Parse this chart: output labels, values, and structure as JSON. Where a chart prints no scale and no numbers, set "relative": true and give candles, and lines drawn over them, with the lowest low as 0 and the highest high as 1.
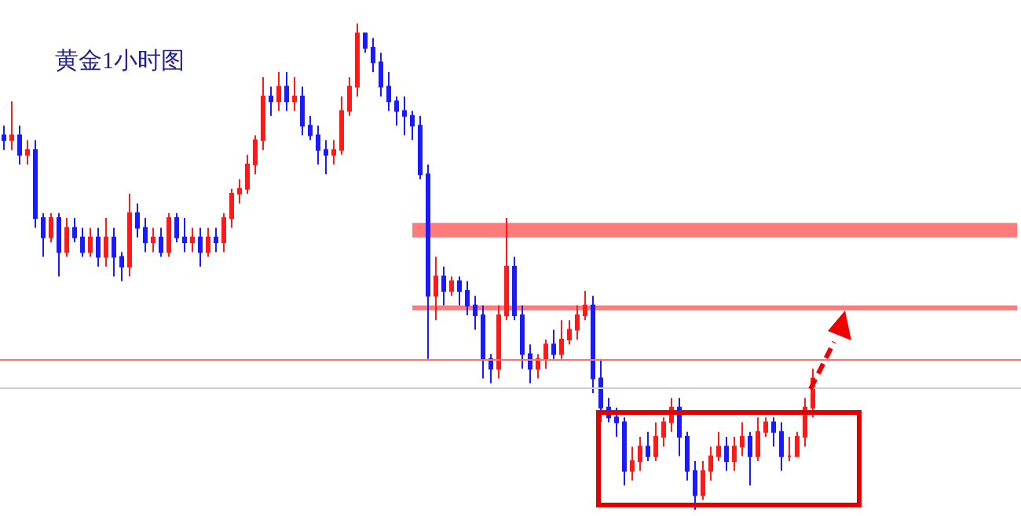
{
  "chart_data": {
    "type": "candlestick",
    "title": "黄金1小时图",
    "relative": true,
    "tick_labels": false,
    "categories": [
      null,
      null,
      null,
      null,
      null,
      null,
      null,
      null,
      null,
      null,
      null,
      null,
      null,
      null,
      null,
      null,
      null,
      null,
      null,
      null,
      null,
      null,
      null,
      null,
      null,
      null,
      null,
      null,
      null,
      null,
      null,
      null,
      null,
      null,
      null,
      null,
      null,
      null,
      null,
      null,
      null,
      null,
      null,
      null,
      null,
      null,
      null,
      null,
      null,
      null,
      null,
      null,
      null,
      null,
      null,
      null,
      null,
      null,
      null,
      null,
      null,
      null,
      null,
      null,
      null,
      null,
      null,
      null,
      null,
      null,
      null,
      null,
      null,
      null,
      null,
      null,
      null,
      null,
      null,
      null,
      null,
      null,
      null,
      null,
      null,
      null,
      null,
      null,
      null,
      null,
      null,
      null,
      null,
      null,
      null,
      null,
      null,
      null,
      null,
      null,
      null,
      null,
      null,
      null
    ],
    "ohlc": [
      [
        0.77,
        0.79,
        0.74,
        0.76
      ],
      [
        0.76,
        0.84,
        0.74,
        0.77
      ],
      [
        0.77,
        0.79,
        0.71,
        0.73
      ],
      [
        0.73,
        0.76,
        0.71,
        0.74
      ],
      [
        0.74,
        0.76,
        0.58,
        0.6
      ],
      [
        0.6,
        0.61,
        0.52,
        0.56
      ],
      [
        0.56,
        0.61,
        0.55,
        0.6
      ],
      [
        0.6,
        0.61,
        0.48,
        0.53
      ],
      [
        0.53,
        0.6,
        0.52,
        0.58
      ],
      [
        0.58,
        0.6,
        0.55,
        0.56
      ],
      [
        0.56,
        0.58,
        0.52,
        0.53
      ],
      [
        0.53,
        0.58,
        0.52,
        0.56
      ],
      [
        0.56,
        0.58,
        0.5,
        0.52
      ],
      [
        0.52,
        0.6,
        0.5,
        0.56
      ],
      [
        0.56,
        0.58,
        0.48,
        0.52
      ],
      [
        0.52,
        0.53,
        0.47,
        0.5
      ],
      [
        0.5,
        0.65,
        0.48,
        0.61
      ],
      [
        0.61,
        0.63,
        0.56,
        0.58
      ],
      [
        0.58,
        0.6,
        0.53,
        0.55
      ],
      [
        0.55,
        0.58,
        0.53,
        0.56
      ],
      [
        0.56,
        0.58,
        0.52,
        0.53
      ],
      [
        0.53,
        0.61,
        0.52,
        0.6
      ],
      [
        0.6,
        0.61,
        0.55,
        0.56
      ],
      [
        0.56,
        0.6,
        0.53,
        0.55
      ],
      [
        0.55,
        0.58,
        0.53,
        0.56
      ],
      [
        0.56,
        0.58,
        0.5,
        0.53
      ],
      [
        0.53,
        0.58,
        0.52,
        0.56
      ],
      [
        0.56,
        0.58,
        0.53,
        0.55
      ],
      [
        0.55,
        0.61,
        0.53,
        0.6
      ],
      [
        0.6,
        0.66,
        0.58,
        0.65
      ],
      [
        0.65,
        0.68,
        0.63,
        0.66
      ],
      [
        0.66,
        0.73,
        0.65,
        0.71
      ],
      [
        0.71,
        0.77,
        0.69,
        0.76
      ],
      [
        0.76,
        0.89,
        0.74,
        0.85
      ],
      [
        0.85,
        0.87,
        0.81,
        0.84
      ],
      [
        0.84,
        0.9,
        0.82,
        0.87
      ],
      [
        0.87,
        0.9,
        0.82,
        0.84
      ],
      [
        0.84,
        0.89,
        0.82,
        0.85
      ],
      [
        0.85,
        0.87,
        0.77,
        0.79
      ],
      [
        0.79,
        0.81,
        0.76,
        0.77
      ],
      [
        0.77,
        0.79,
        0.71,
        0.74
      ],
      [
        0.74,
        0.76,
        0.69,
        0.73
      ],
      [
        0.73,
        0.76,
        0.71,
        0.74
      ],
      [
        0.74,
        0.85,
        0.73,
        0.82
      ],
      [
        0.82,
        0.89,
        0.81,
        0.87
      ],
      [
        0.87,
        1.0,
        0.85,
        0.98
      ],
      [
        0.98,
        0.98,
        0.94,
        0.95
      ],
      [
        0.95,
        0.97,
        0.9,
        0.92
      ],
      [
        0.92,
        0.94,
        0.85,
        0.87
      ],
      [
        0.87,
        0.9,
        0.82,
        0.84
      ],
      [
        0.84,
        0.85,
        0.79,
        0.82
      ],
      [
        0.82,
        0.85,
        0.77,
        0.81
      ],
      [
        0.81,
        0.82,
        0.76,
        0.79
      ],
      [
        0.79,
        0.81,
        0.68,
        0.69
      ],
      [
        0.69,
        0.71,
        0.31,
        0.44
      ],
      [
        0.44,
        0.52,
        0.39,
        0.48
      ],
      [
        0.48,
        0.5,
        0.42,
        0.45
      ],
      [
        0.45,
        0.48,
        0.44,
        0.47
      ],
      [
        0.47,
        0.48,
        0.42,
        0.45
      ],
      [
        0.45,
        0.47,
        0.4,
        0.42
      ],
      [
        0.42,
        0.44,
        0.37,
        0.4
      ],
      [
        0.4,
        0.42,
        0.27,
        0.31
      ],
      [
        0.31,
        0.32,
        0.26,
        0.29
      ],
      [
        0.29,
        0.42,
        0.27,
        0.4
      ],
      [
        0.4,
        0.6,
        0.39,
        0.5
      ],
      [
        0.5,
        0.52,
        0.39,
        0.4
      ],
      [
        0.4,
        0.42,
        0.29,
        0.32
      ],
      [
        0.32,
        0.34,
        0.26,
        0.29
      ],
      [
        0.29,
        0.32,
        0.27,
        0.31
      ],
      [
        0.31,
        0.35,
        0.29,
        0.34
      ],
      [
        0.34,
        0.37,
        0.31,
        0.32
      ],
      [
        0.32,
        0.39,
        0.31,
        0.35
      ],
      [
        0.35,
        0.39,
        0.34,
        0.37
      ],
      [
        0.37,
        0.42,
        0.35,
        0.4
      ],
      [
        0.4,
        0.45,
        0.39,
        0.42
      ],
      [
        0.42,
        0.44,
        0.24,
        0.27
      ],
      [
        0.27,
        0.31,
        0.18,
        0.21
      ],
      [
        0.21,
        0.23,
        0.18,
        0.19
      ],
      [
        0.19,
        0.21,
        0.15,
        0.18
      ],
      [
        0.18,
        0.19,
        0.05,
        0.08
      ],
      [
        0.08,
        0.13,
        0.06,
        0.1
      ],
      [
        0.1,
        0.15,
        0.08,
        0.13
      ],
      [
        0.13,
        0.16,
        0.1,
        0.11
      ],
      [
        0.11,
        0.18,
        0.1,
        0.15
      ],
      [
        0.15,
        0.19,
        0.13,
        0.18
      ],
      [
        0.18,
        0.23,
        0.16,
        0.21
      ],
      [
        0.21,
        0.23,
        0.11,
        0.15
      ],
      [
        0.15,
        0.16,
        0.06,
        0.08
      ],
      [
        0.08,
        0.1,
        0.0,
        0.03
      ],
      [
        0.03,
        0.1,
        0.02,
        0.08
      ],
      [
        0.08,
        0.13,
        0.06,
        0.11
      ],
      [
        0.11,
        0.16,
        0.1,
        0.13
      ],
      [
        0.13,
        0.15,
        0.08,
        0.1
      ],
      [
        0.1,
        0.15,
        0.08,
        0.13
      ],
      [
        0.13,
        0.18,
        0.11,
        0.15
      ],
      [
        0.15,
        0.16,
        0.05,
        0.11
      ],
      [
        0.11,
        0.19,
        0.1,
        0.16
      ],
      [
        0.16,
        0.19,
        0.15,
        0.18
      ],
      [
        0.18,
        0.19,
        0.13,
        0.16
      ],
      [
        0.16,
        0.18,
        0.08,
        0.11
      ],
      [
        0.11,
        0.15,
        0.1,
        0.11
      ],
      [
        0.11,
        0.16,
        0.11,
        0.15
      ],
      [
        0.15,
        0.23,
        0.13,
        0.21
      ],
      [
        0.21,
        0.29,
        0.19,
        0.27
      ]
    ],
    "bands": [
      {
        "axis": "y",
        "from": 0.56,
        "to": 0.59,
        "color": "#ff7b7b"
      },
      {
        "axis": "y",
        "from": 0.41,
        "to": 0.42,
        "color": "#ff7b7b"
      }
    ],
    "ref_lines": [
      {
        "axis": "y",
        "value": 0.31,
        "color": "#ff7070"
      },
      {
        "axis": "y",
        "value": 0.25,
        "color": "#d0d0d0"
      }
    ]
  }
}
